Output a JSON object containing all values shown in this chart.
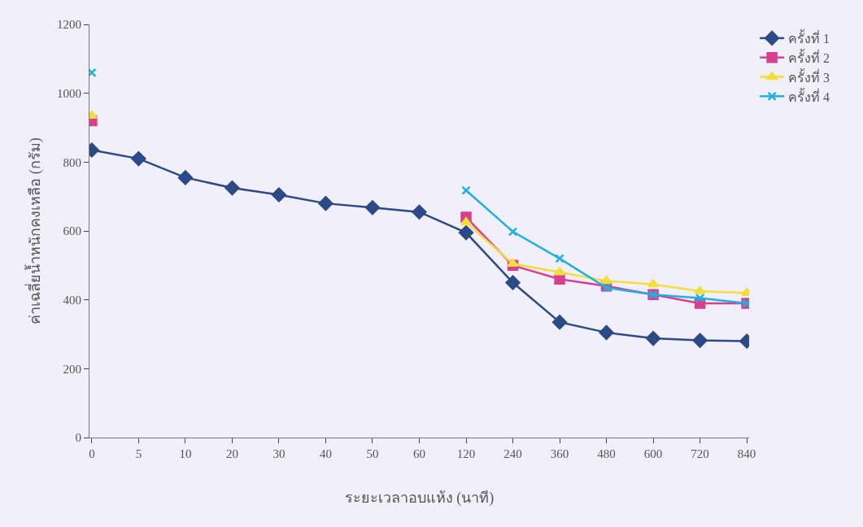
{
  "chart_data": {
    "type": "line",
    "xlabel": "ระยะเวลาอบแห้ง (นาที)",
    "ylabel": "ค่าเฉลี่ยน้ำหนักคงเหลือ (กรัม)",
    "categories": [
      "0",
      "5",
      "10",
      "20",
      "30",
      "40",
      "50",
      "60",
      "120",
      "240",
      "360",
      "480",
      "600",
      "720",
      "840"
    ],
    "series": [
      {
        "name": "ครั้งที่ 1",
        "color": "#2b4a86",
        "marker": "diamond",
        "values": [
          835,
          810,
          755,
          725,
          705,
          680,
          668,
          655,
          595,
          450,
          335,
          305,
          288,
          282,
          280
        ]
      },
      {
        "name": "ครั้งที่ 2",
        "color": "#d6408f",
        "marker": "square",
        "values": [
          920,
          null,
          null,
          null,
          null,
          null,
          null,
          null,
          640,
          500,
          460,
          440,
          415,
          390,
          390
        ]
      },
      {
        "name": "ครั้งที่ 3",
        "color": "#f2de3a",
        "marker": "triangle",
        "values": [
          935,
          null,
          null,
          null,
          null,
          null,
          null,
          null,
          625,
          505,
          480,
          455,
          445,
          425,
          420
        ]
      },
      {
        "name": "ครั้งที่ 4",
        "color": "#1fb0e0",
        "marker": "cross",
        "values": [
          1060,
          null,
          null,
          null,
          null,
          null,
          null,
          null,
          718,
          598,
          520,
          435,
          415,
          405,
          390
        ]
      }
    ],
    "ylim": [
      0,
      1200
    ],
    "yticks": [
      0,
      200,
      400,
      600,
      800,
      1000,
      1200
    ],
    "grid": false,
    "legend": "top right",
    "line_style": "solid"
  }
}
